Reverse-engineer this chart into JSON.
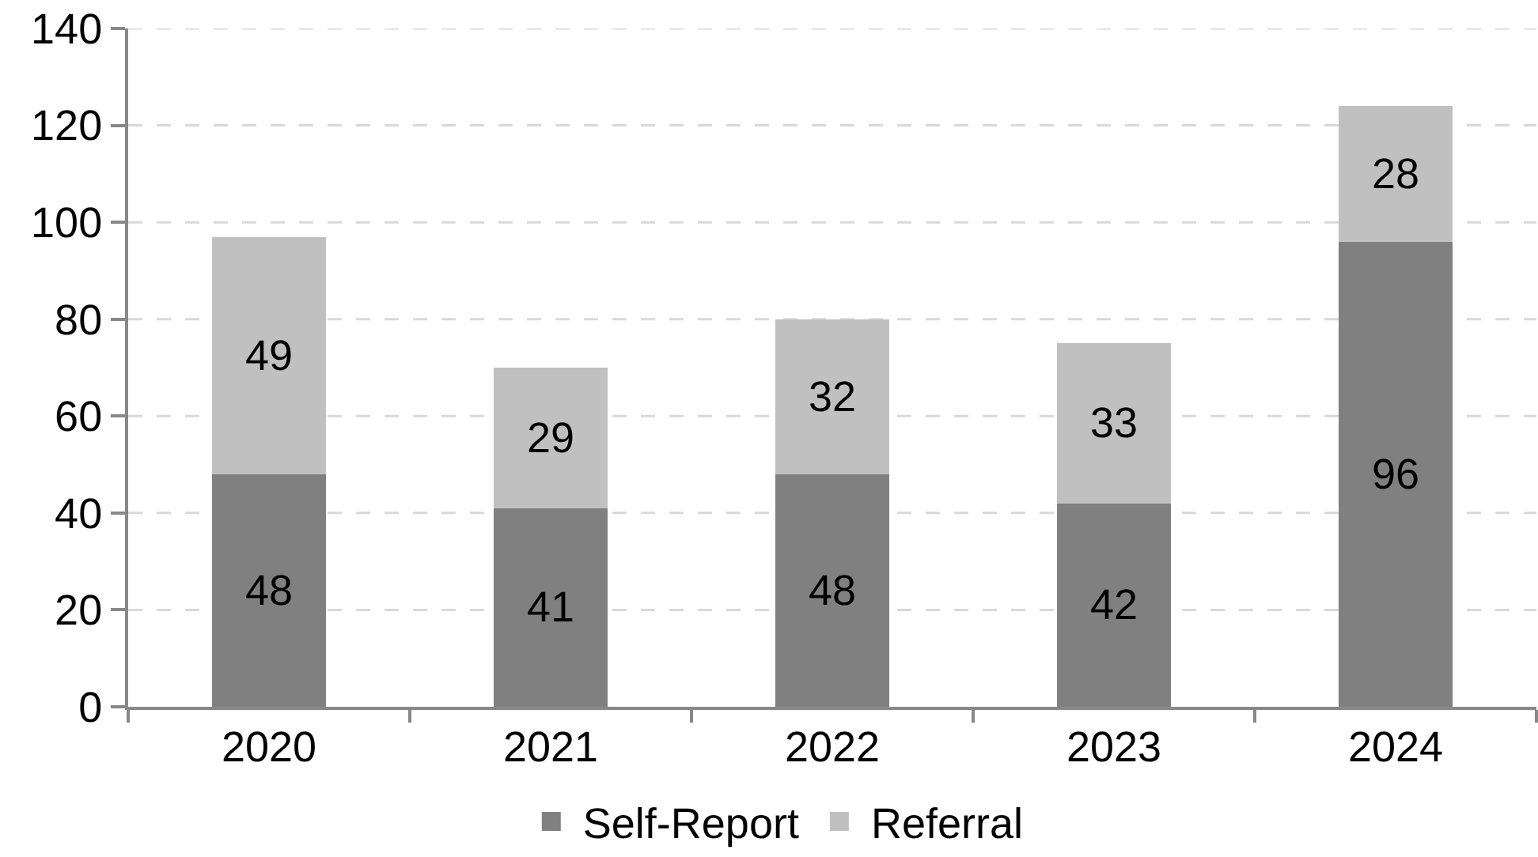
{
  "chart_data": {
    "type": "bar",
    "categories": [
      "2020",
      "2021",
      "2022",
      "2023",
      "2024"
    ],
    "series": [
      {
        "name": "Self-Report",
        "color": "#808080",
        "values": [
          48,
          41,
          48,
          42,
          96
        ]
      },
      {
        "name": "Referral",
        "color": "#c0c0c0",
        "values": [
          49,
          29,
          32,
          33,
          28
        ]
      }
    ],
    "stacked": true,
    "ylim": [
      0,
      140
    ],
    "yticks": [
      0,
      20,
      40,
      60,
      80,
      100,
      120,
      140
    ],
    "grid": "y",
    "legend": "bottom",
    "data_labels": true
  }
}
